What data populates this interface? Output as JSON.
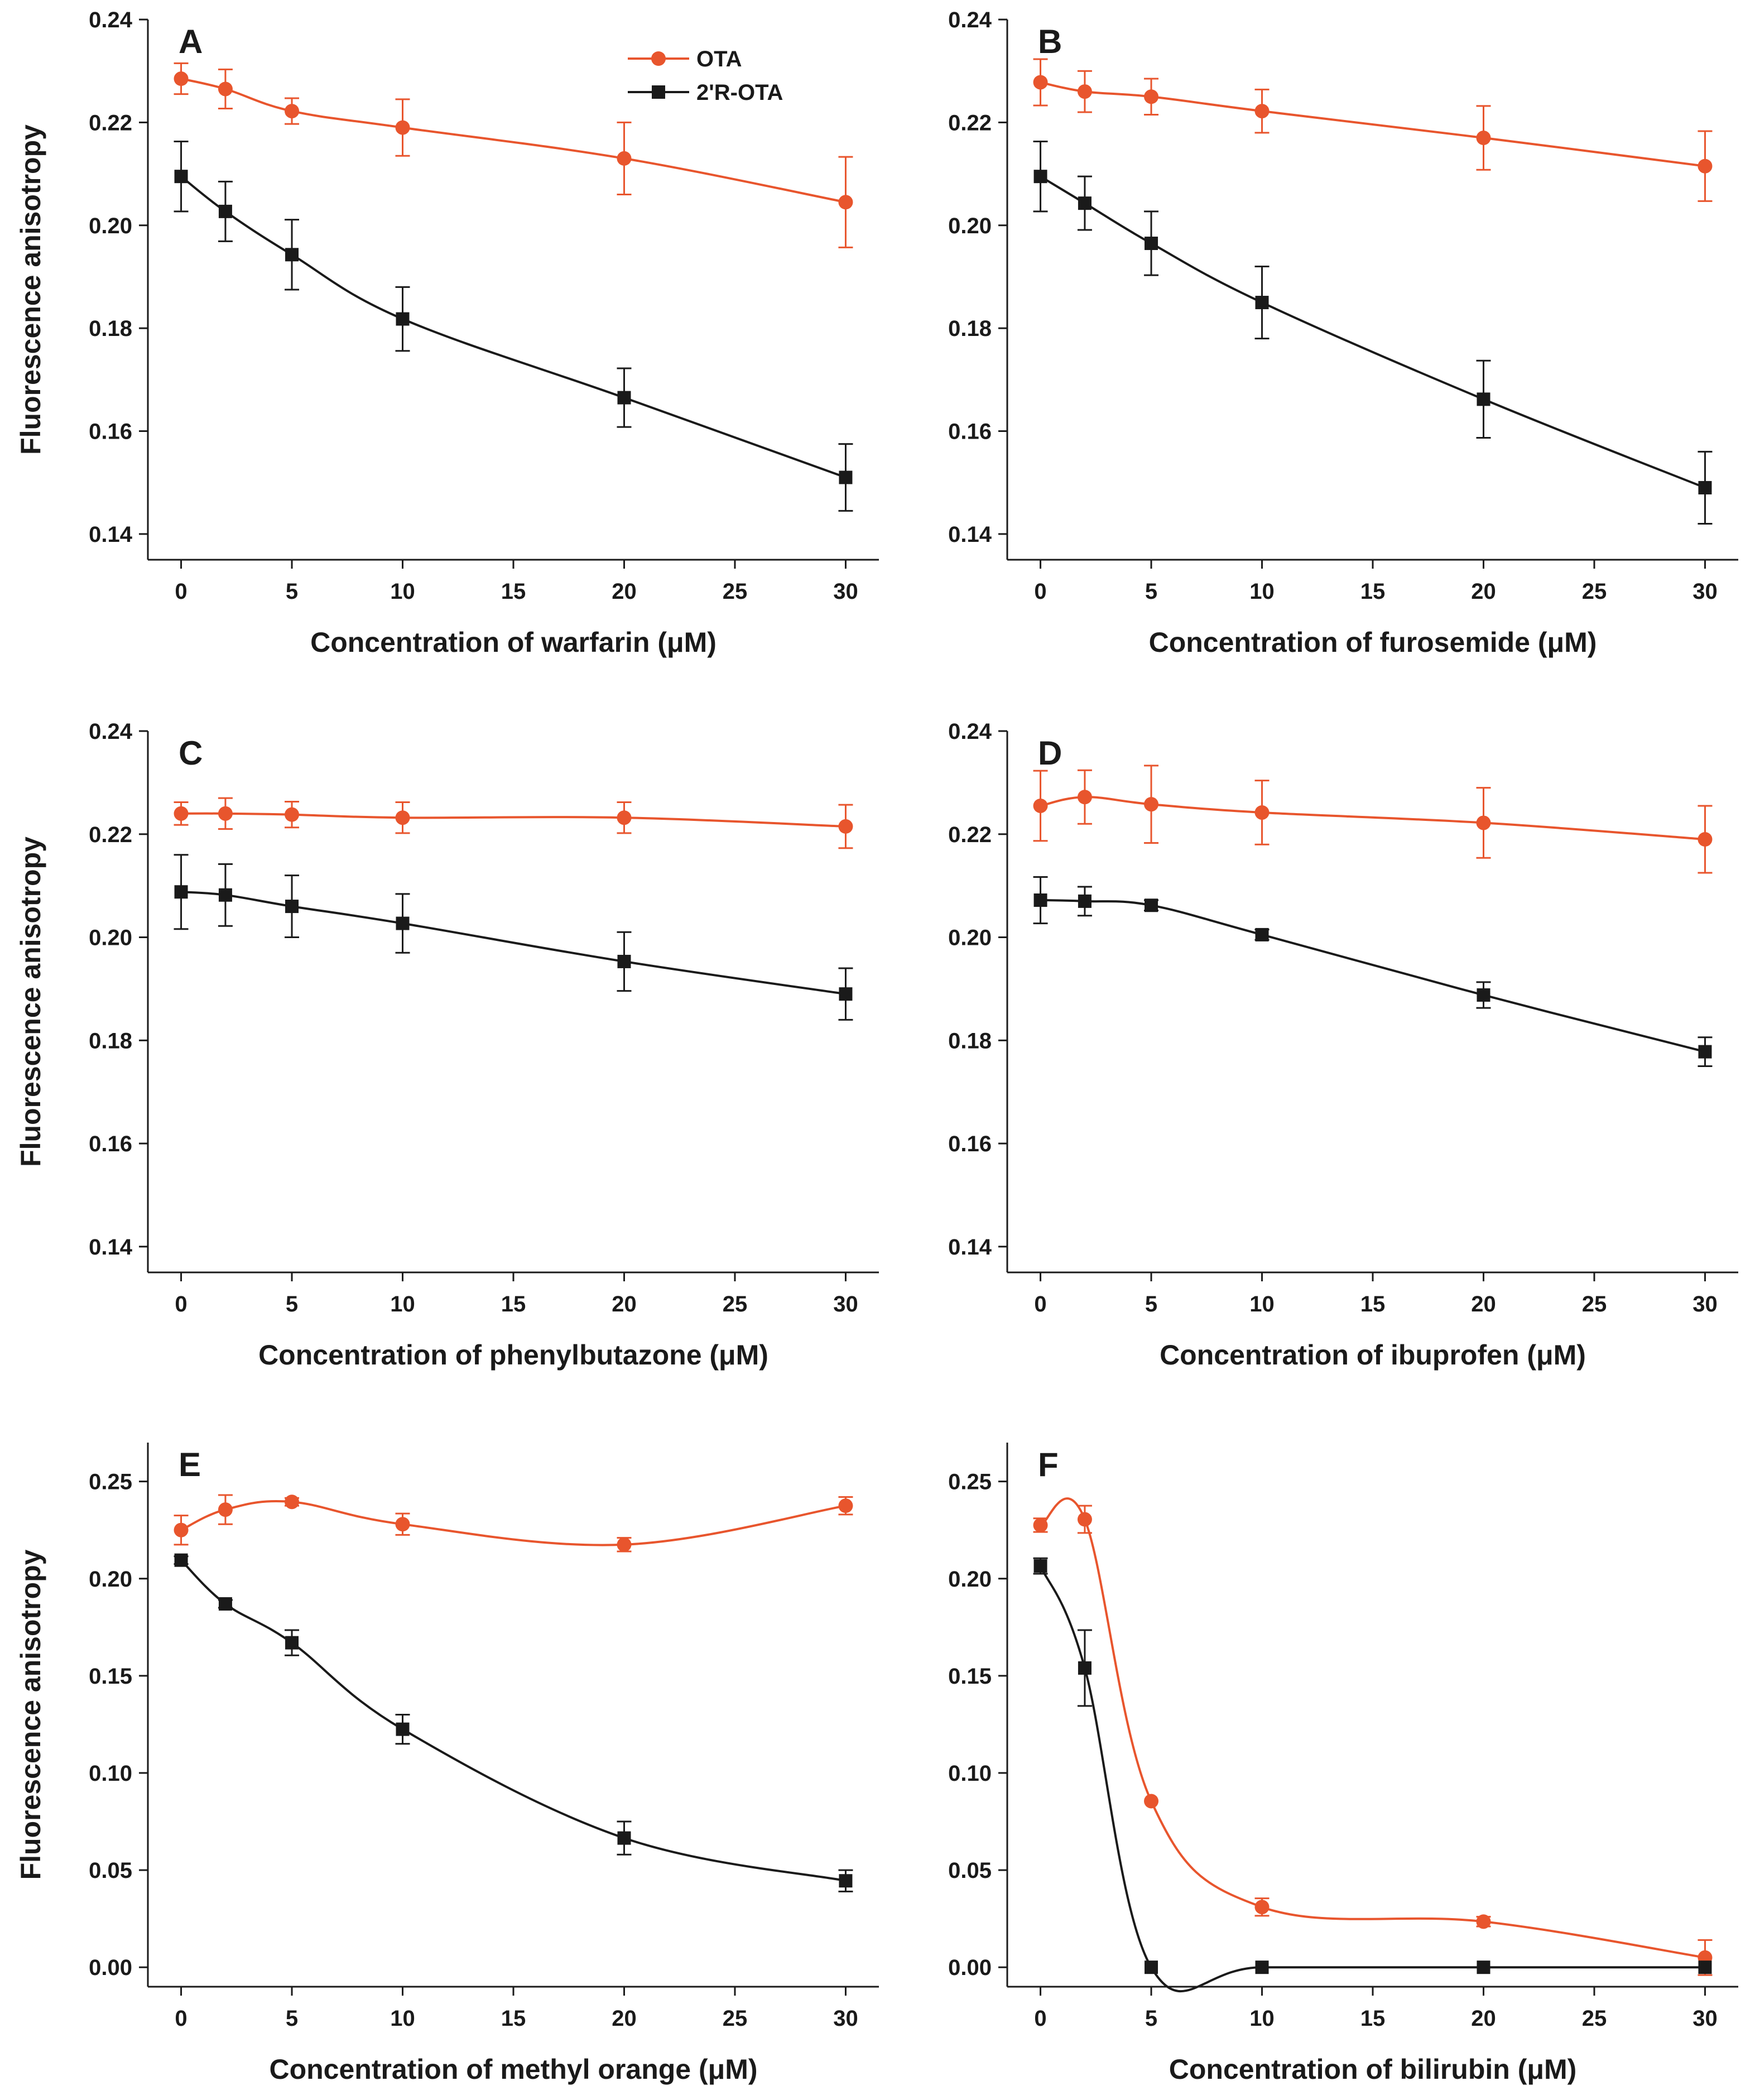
{
  "figure": {
    "colors": {
      "OTA": "#e8552d",
      "2'R-OTA": "#1a1a1a"
    },
    "legend": {
      "placement": "top-right of panel A",
      "entries": [
        "OTA",
        "2'R-OTA"
      ]
    }
  },
  "chart_data": [
    {
      "type": "line",
      "panel": "A",
      "xlabel": "Concentration of warfarin (μM)",
      "ylabel": "Fluorescence anisotropy",
      "xlim": [
        -1.5,
        31.5
      ],
      "ylim": [
        0.135,
        0.24
      ],
      "xticks": [
        0,
        5,
        10,
        15,
        20,
        25,
        30
      ],
      "xtick_labels": [
        "0",
        "5",
        "10",
        "15",
        "20",
        "25",
        "30"
      ],
      "yticks": [
        0.14,
        0.16,
        0.18,
        0.2,
        0.22,
        0.24
      ],
      "ytick_labels": [
        "0.14",
        "0.16",
        "0.18",
        "0.20",
        "0.22",
        "0.24"
      ],
      "x": [
        0,
        2,
        5,
        10,
        20,
        30
      ],
      "series": [
        {
          "name": "OTA",
          "values": [
            0.2285,
            0.2265,
            0.2222,
            0.219,
            0.213,
            0.2045
          ],
          "errors": [
            0.003,
            0.0038,
            0.0025,
            0.0055,
            0.007,
            0.0088
          ]
        },
        {
          "name": "2'R-OTA",
          "values": [
            0.2095,
            0.2027,
            0.1943,
            0.1818,
            0.1665,
            0.151
          ],
          "errors": [
            0.0068,
            0.0058,
            0.0068,
            0.0062,
            0.0057,
            0.0065
          ]
        }
      ]
    },
    {
      "type": "line",
      "panel": "B",
      "xlabel": "Concentration of furosemide (μM)",
      "ylabel": "",
      "xlim": [
        -1.5,
        31.5
      ],
      "ylim": [
        0.135,
        0.24
      ],
      "xticks": [
        0,
        5,
        10,
        15,
        20,
        25,
        30
      ],
      "xtick_labels": [
        "0",
        "5",
        "10",
        "15",
        "20",
        "25",
        "30"
      ],
      "yticks": [
        0.14,
        0.16,
        0.18,
        0.2,
        0.22,
        0.24
      ],
      "ytick_labels": [
        "0.14",
        "0.16",
        "0.18",
        "0.20",
        "0.22",
        "0.24"
      ],
      "x": [
        0,
        2,
        5,
        10,
        20,
        30
      ],
      "series": [
        {
          "name": "OTA",
          "values": [
            0.2278,
            0.226,
            0.225,
            0.2222,
            0.217,
            0.2115
          ],
          "errors": [
            0.0045,
            0.004,
            0.0035,
            0.0042,
            0.0062,
            0.0068
          ]
        },
        {
          "name": "2'R-OTA",
          "values": [
            0.2095,
            0.2043,
            0.1965,
            0.185,
            0.1662,
            0.149
          ],
          "errors": [
            0.0068,
            0.0052,
            0.0062,
            0.007,
            0.0075,
            0.007
          ]
        }
      ]
    },
    {
      "type": "line",
      "panel": "C",
      "xlabel": "Concentration of phenylbutazone (μM)",
      "ylabel": "Fluorescence anisotropy",
      "xlim": [
        -1.5,
        31.5
      ],
      "ylim": [
        0.135,
        0.24
      ],
      "xticks": [
        0,
        5,
        10,
        15,
        20,
        25,
        30
      ],
      "xtick_labels": [
        "0",
        "5",
        "10",
        "15",
        "20",
        "25",
        "30"
      ],
      "yticks": [
        0.14,
        0.16,
        0.18,
        0.2,
        0.22,
        0.24
      ],
      "ytick_labels": [
        "0.14",
        "0.16",
        "0.18",
        "0.20",
        "0.22",
        "0.24"
      ],
      "x": [
        0,
        2,
        5,
        10,
        20,
        30
      ],
      "series": [
        {
          "name": "OTA",
          "values": [
            0.224,
            0.224,
            0.2238,
            0.2232,
            0.2232,
            0.2215
          ],
          "errors": [
            0.0022,
            0.003,
            0.0025,
            0.003,
            0.003,
            0.0042
          ]
        },
        {
          "name": "2'R-OTA",
          "values": [
            0.2088,
            0.2082,
            0.206,
            0.2027,
            0.1953,
            0.189
          ],
          "errors": [
            0.0072,
            0.006,
            0.006,
            0.0057,
            0.0057,
            0.005
          ]
        }
      ]
    },
    {
      "type": "line",
      "panel": "D",
      "xlabel": "Concentration of ibuprofen (μM)",
      "ylabel": "",
      "xlim": [
        -1.5,
        31.5
      ],
      "ylim": [
        0.135,
        0.24
      ],
      "xticks": [
        0,
        5,
        10,
        15,
        20,
        25,
        30
      ],
      "xtick_labels": [
        "0",
        "5",
        "10",
        "15",
        "20",
        "25",
        "30"
      ],
      "yticks": [
        0.14,
        0.16,
        0.18,
        0.2,
        0.22,
        0.24
      ],
      "ytick_labels": [
        "0.14",
        "0.16",
        "0.18",
        "0.20",
        "0.22",
        "0.24"
      ],
      "x": [
        0,
        2,
        5,
        10,
        20,
        30
      ],
      "series": [
        {
          "name": "OTA",
          "values": [
            0.2255,
            0.2272,
            0.2258,
            0.2242,
            0.2222,
            0.219
          ],
          "errors": [
            0.0068,
            0.0052,
            0.0075,
            0.0062,
            0.0068,
            0.0065
          ]
        },
        {
          "name": "2'R-OTA",
          "values": [
            0.2072,
            0.207,
            0.2062,
            0.2005,
            0.1888,
            0.1778
          ],
          "errors": [
            0.0045,
            0.0028,
            0.001,
            0.001,
            0.0025,
            0.0028
          ]
        }
      ]
    },
    {
      "type": "line",
      "panel": "E",
      "xlabel": "Concentration of methyl orange (μM)",
      "ylabel": "Fluorescence anisotropy",
      "xlim": [
        -1.5,
        31.5
      ],
      "ylim": [
        -0.01,
        0.27
      ],
      "xticks": [
        0,
        5,
        10,
        15,
        20,
        25,
        30
      ],
      "xtick_labels": [
        "0",
        "5",
        "10",
        "15",
        "20",
        "25",
        "30"
      ],
      "yticks": [
        0,
        0.05,
        0.1,
        0.15,
        0.2,
        0.25
      ],
      "ytick_labels": [
        "0.00",
        "0.05",
        "0.10",
        "0.15",
        "0.20",
        "0.25"
      ],
      "x": [
        0,
        2,
        5,
        10,
        20,
        30
      ],
      "series": [
        {
          "name": "OTA",
          "values": [
            0.225,
            0.2355,
            0.2395,
            0.228,
            0.2175,
            0.2375
          ],
          "errors": [
            0.0075,
            0.0075,
            0.002,
            0.0055,
            0.0035,
            0.0045
          ]
        },
        {
          "name": "2'R-OTA",
          "values": [
            0.2095,
            0.187,
            0.167,
            0.1225,
            0.0665,
            0.0445
          ],
          "errors": [
            0.002,
            0.002,
            0.0065,
            0.0075,
            0.0085,
            0.0055
          ]
        }
      ]
    },
    {
      "type": "line",
      "panel": "F",
      "xlabel": "Concentration of bilirubin (μM)",
      "ylabel": "",
      "xlim": [
        -1.5,
        31.5
      ],
      "ylim": [
        -0.01,
        0.27
      ],
      "xticks": [
        0,
        5,
        10,
        15,
        20,
        25,
        30
      ],
      "xtick_labels": [
        "0",
        "5",
        "10",
        "15",
        "20",
        "25",
        "30"
      ],
      "yticks": [
        0,
        0.05,
        0.1,
        0.15,
        0.2,
        0.25
      ],
      "ytick_labels": [
        "0.00",
        "0.05",
        "0.10",
        "0.15",
        "0.20",
        "0.25"
      ],
      "x": [
        0,
        2,
        5,
        10,
        20,
        30
      ],
      "series": [
        {
          "name": "OTA",
          "values": [
            0.2275,
            0.2305,
            0.0855,
            0.031,
            0.0235,
            0.005
          ],
          "errors": [
            0.0035,
            0.007,
            0.0,
            0.0045,
            0.0025,
            0.009
          ]
        },
        {
          "name": "2'R-OTA",
          "values": [
            0.2065,
            0.154,
            0.0,
            0.0,
            0.0,
            0.0
          ],
          "errors": [
            0.004,
            0.0195,
            0.0,
            0.0,
            0.0,
            0.0
          ]
        }
      ]
    }
  ]
}
